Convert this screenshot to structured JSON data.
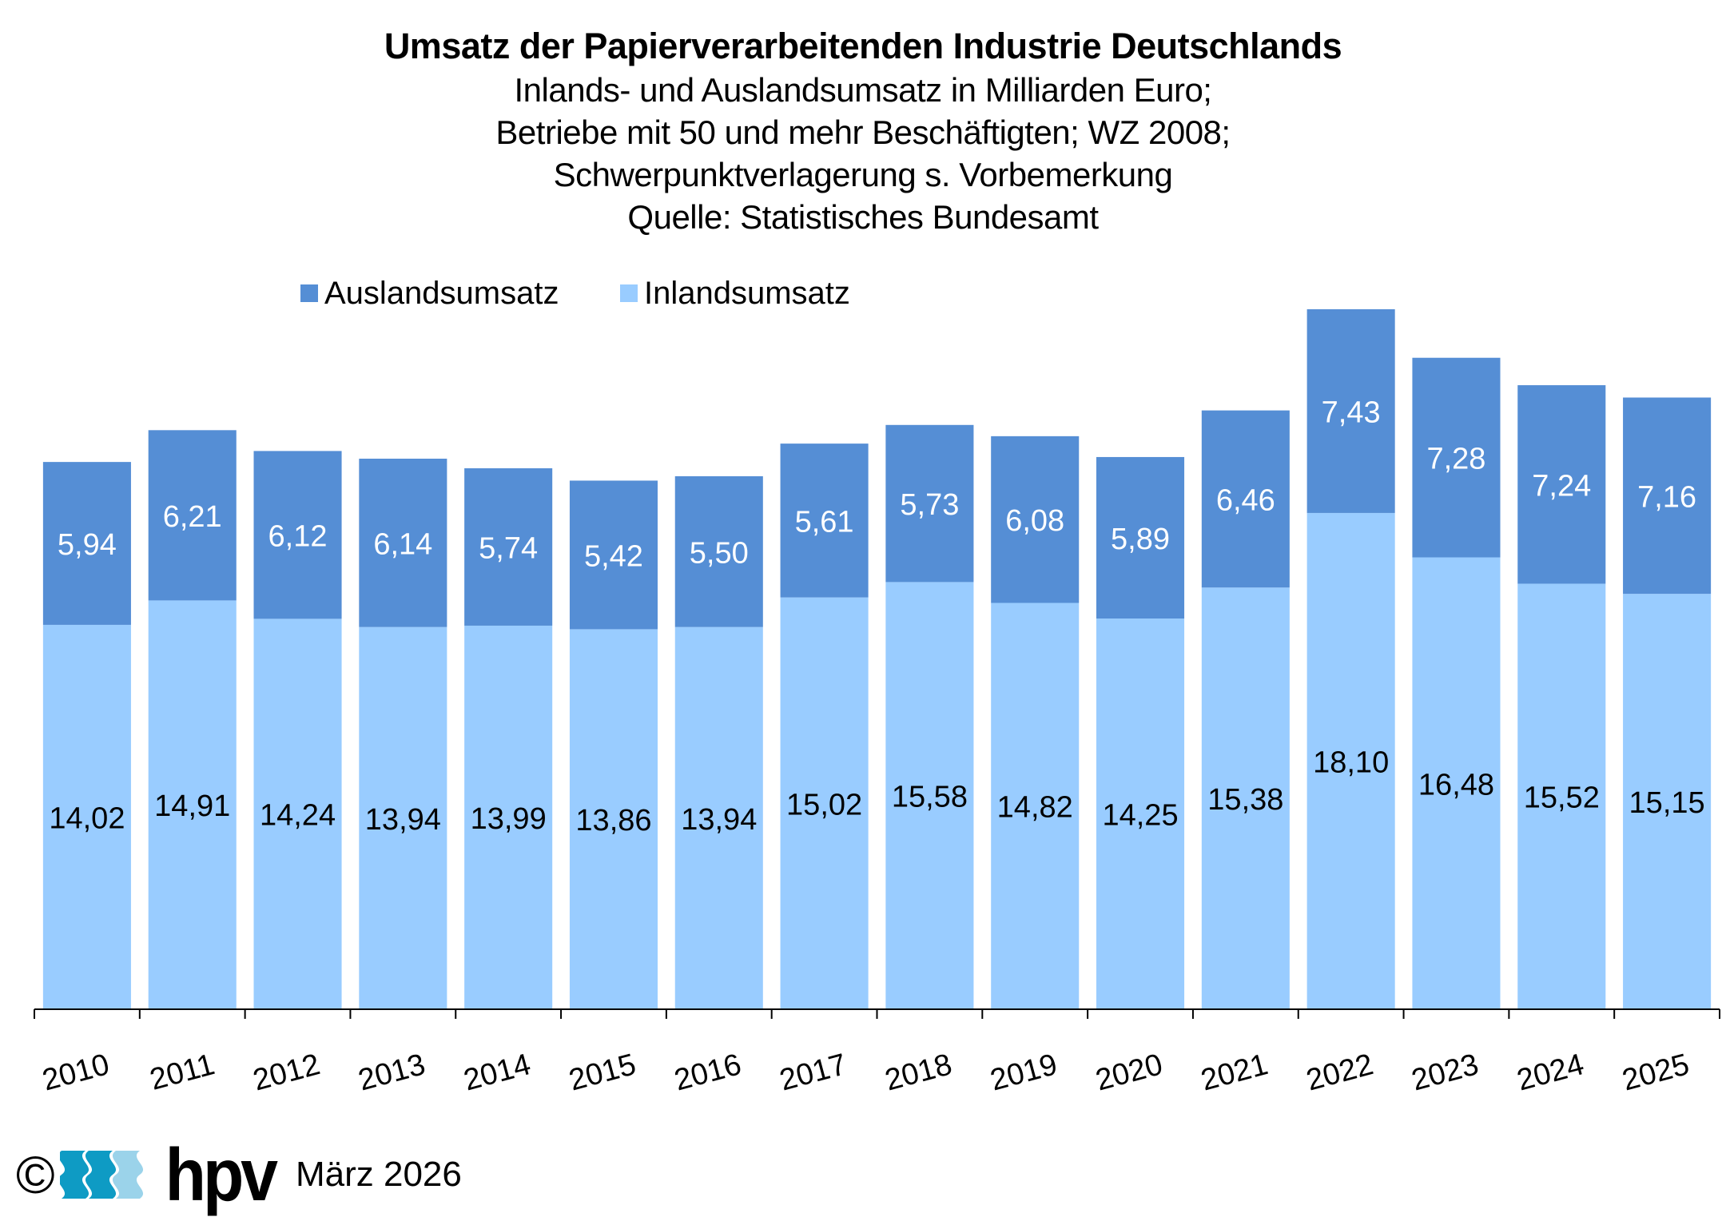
{
  "chart_data": {
    "type": "bar",
    "stacked": true,
    "title": "Umsatz der Papierverarbeitenden Industrie Deutschlands",
    "subtitle": [
      "Inlands- und Auslandsumsatz in Milliarden Euro;",
      "Betriebe mit 50 und mehr Beschäftigten; WZ 2008;",
      "Schwerpunktverlagerung s. Vorbemerkung",
      "Quelle: Statistisches Bundesamt"
    ],
    "xlabel": "",
    "ylabel": "",
    "ylim": [
      0,
      26
    ],
    "grid": false,
    "legend_position": "top-left",
    "categories": [
      "2010",
      "2011",
      "2012",
      "2013",
      "2014",
      "2015",
      "2016",
      "2017",
      "2018",
      "2019",
      "2020",
      "2021",
      "2022",
      "2023",
      "2024",
      "2025"
    ],
    "series": [
      {
        "name": "Inlandsumsatz",
        "color": "#99CCFF",
        "label_color": "#000000",
        "values": [
          14.02,
          14.91,
          14.24,
          13.94,
          13.99,
          13.86,
          13.94,
          15.02,
          15.58,
          14.82,
          14.25,
          15.38,
          18.1,
          16.48,
          15.52,
          15.15
        ],
        "labels": [
          "14,02",
          "14,91",
          "14,24",
          "13,94",
          "13,99",
          "13,86",
          "13,94",
          "15,02",
          "15,58",
          "14,82",
          "14,25",
          "15,38",
          "18,10",
          "16,48",
          "15,52",
          "15,15"
        ]
      },
      {
        "name": "Auslandsumsatz",
        "color": "#558ED5",
        "label_color": "#FFFFFF",
        "values": [
          5.94,
          6.21,
          6.12,
          6.14,
          5.74,
          5.42,
          5.5,
          5.61,
          5.73,
          6.08,
          5.89,
          6.46,
          7.43,
          7.28,
          7.24,
          7.16
        ],
        "labels": [
          "5,94",
          "6,21",
          "6,12",
          "6,14",
          "5,74",
          "5,42",
          "5,50",
          "5,61",
          "5,73",
          "6,08",
          "5,89",
          "6,46",
          "7,43",
          "7,28",
          "7,24",
          "7,16"
        ]
      }
    ],
    "legend": [
      {
        "name": "Auslandsumsatz",
        "color": "#558ED5"
      },
      {
        "name": "Inlandsumsatz",
        "color": "#99CCFF"
      }
    ]
  },
  "footer": {
    "copyright_symbol": "©",
    "logo_text": "hpv",
    "logo_colors": [
      "#0E9BC4",
      "#0E9BC4",
      "#9BD3EA"
    ],
    "date": "März 2026"
  }
}
